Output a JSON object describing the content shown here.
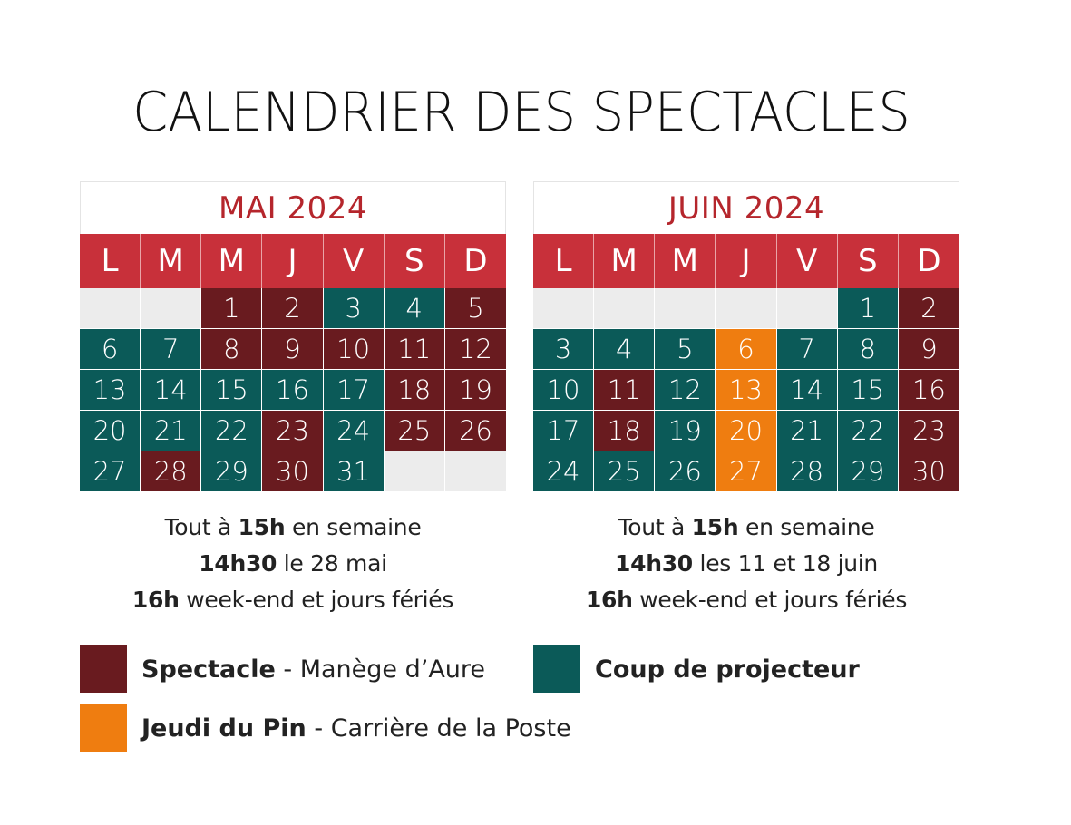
{
  "title": "CALENDRIER DES SPECTACLES",
  "colors": {
    "spectacle": "#691b1f",
    "projecteur": "#0b5a58",
    "jeudi": "#ef7d10",
    "header": "#c8303a",
    "month_title": "#b5262c",
    "empty": "#ececec"
  },
  "weekdays": [
    "L",
    "M",
    "M",
    "J",
    "V",
    "S",
    "D"
  ],
  "calendars": [
    {
      "month": "MAI 2024",
      "offset": 2,
      "days": [
        {
          "d": "1",
          "t": "spectacle"
        },
        {
          "d": "2",
          "t": "spectacle"
        },
        {
          "d": "3",
          "t": "projecteur"
        },
        {
          "d": "4",
          "t": "projecteur"
        },
        {
          "d": "5",
          "t": "spectacle"
        },
        {
          "d": "6",
          "t": "projecteur"
        },
        {
          "d": "7",
          "t": "projecteur"
        },
        {
          "d": "8",
          "t": "spectacle"
        },
        {
          "d": "9",
          "t": "spectacle"
        },
        {
          "d": "10",
          "t": "spectacle"
        },
        {
          "d": "11",
          "t": "spectacle"
        },
        {
          "d": "12",
          "t": "spectacle"
        },
        {
          "d": "13",
          "t": "projecteur"
        },
        {
          "d": "14",
          "t": "projecteur"
        },
        {
          "d": "15",
          "t": "projecteur"
        },
        {
          "d": "16",
          "t": "projecteur"
        },
        {
          "d": "17",
          "t": "projecteur"
        },
        {
          "d": "18",
          "t": "spectacle"
        },
        {
          "d": "19",
          "t": "spectacle"
        },
        {
          "d": "20",
          "t": "projecteur"
        },
        {
          "d": "21",
          "t": "projecteur"
        },
        {
          "d": "22",
          "t": "projecteur"
        },
        {
          "d": "23",
          "t": "spectacle"
        },
        {
          "d": "24",
          "t": "projecteur"
        },
        {
          "d": "25",
          "t": "spectacle"
        },
        {
          "d": "26",
          "t": "spectacle"
        },
        {
          "d": "27",
          "t": "projecteur"
        },
        {
          "d": "28",
          "t": "spectacle"
        },
        {
          "d": "29",
          "t": "projecteur"
        },
        {
          "d": "30",
          "t": "spectacle"
        },
        {
          "d": "31",
          "t": "projecteur"
        }
      ],
      "info": [
        [
          {
            "t": "Tout à ",
            "b": false
          },
          {
            "t": "15h",
            "b": true
          },
          {
            "t": " en semaine",
            "b": false
          }
        ],
        [
          {
            "t": "14h30",
            "b": true
          },
          {
            "t": " le 28 mai",
            "b": false
          }
        ],
        [
          {
            "t": "16h",
            "b": true
          },
          {
            "t": " week-end et jours fériés",
            "b": false
          }
        ]
      ]
    },
    {
      "month": "JUIN 2024",
      "offset": 5,
      "days": [
        {
          "d": "1",
          "t": "projecteur"
        },
        {
          "d": "2",
          "t": "spectacle"
        },
        {
          "d": "3",
          "t": "projecteur"
        },
        {
          "d": "4",
          "t": "projecteur"
        },
        {
          "d": "5",
          "t": "projecteur"
        },
        {
          "d": "6",
          "t": "jeudi"
        },
        {
          "d": "7",
          "t": "projecteur"
        },
        {
          "d": "8",
          "t": "projecteur"
        },
        {
          "d": "9",
          "t": "spectacle"
        },
        {
          "d": "10",
          "t": "projecteur"
        },
        {
          "d": "11",
          "t": "spectacle"
        },
        {
          "d": "12",
          "t": "projecteur"
        },
        {
          "d": "13",
          "t": "jeudi"
        },
        {
          "d": "14",
          "t": "projecteur"
        },
        {
          "d": "15",
          "t": "projecteur"
        },
        {
          "d": "16",
          "t": "spectacle"
        },
        {
          "d": "17",
          "t": "projecteur"
        },
        {
          "d": "18",
          "t": "spectacle"
        },
        {
          "d": "19",
          "t": "projecteur"
        },
        {
          "d": "20",
          "t": "jeudi"
        },
        {
          "d": "21",
          "t": "projecteur"
        },
        {
          "d": "22",
          "t": "projecteur"
        },
        {
          "d": "23",
          "t": "spectacle"
        },
        {
          "d": "24",
          "t": "projecteur"
        },
        {
          "d": "25",
          "t": "projecteur"
        },
        {
          "d": "26",
          "t": "projecteur"
        },
        {
          "d": "27",
          "t": "jeudi"
        },
        {
          "d": "28",
          "t": "projecteur"
        },
        {
          "d": "29",
          "t": "projecteur"
        },
        {
          "d": "30",
          "t": "spectacle"
        }
      ],
      "info": [
        [
          {
            "t": "Tout à ",
            "b": false
          },
          {
            "t": "15h",
            "b": true
          },
          {
            "t": " en semaine",
            "b": false
          }
        ],
        [
          {
            "t": "14h30",
            "b": true
          },
          {
            "t": " les 11 et 18 juin",
            "b": false
          }
        ],
        [
          {
            "t": "16h",
            "b": true
          },
          {
            "t": " week-end et jours fériés",
            "b": false
          }
        ]
      ]
    }
  ],
  "legend": {
    "spectacle": {
      "bold": "Spectacle",
      "rest": " - Manège d’Aure"
    },
    "projecteur": {
      "bold": "Coup de projecteur",
      "rest": ""
    },
    "jeudi": {
      "bold": "Jeudi du Pin",
      "rest": " - Carrière de la Poste"
    }
  }
}
